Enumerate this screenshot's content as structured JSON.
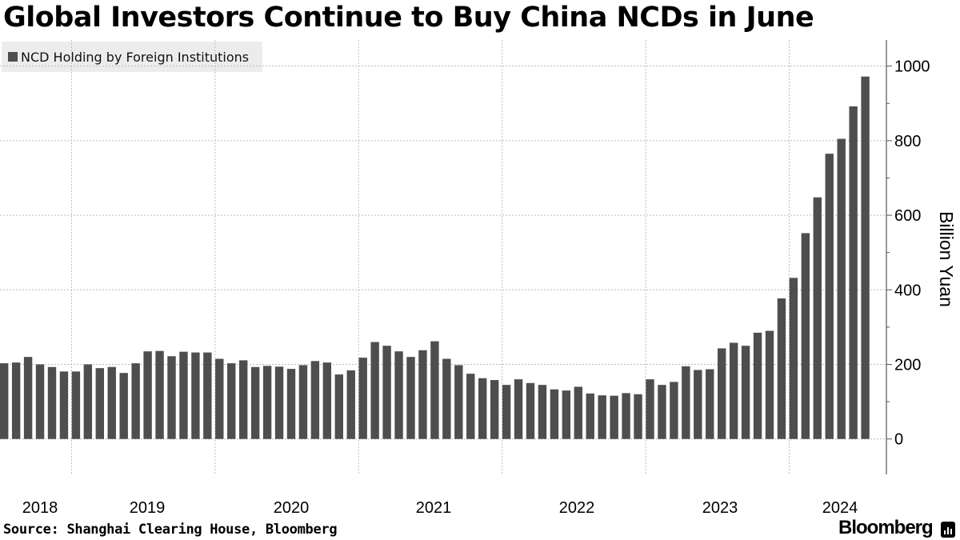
{
  "title": "Global Investors Continue to Buy China NCDs in June",
  "source": "Source: Shanghai Clearing House, Bloomberg",
  "brand": "Bloomberg",
  "colors": {
    "bar": "#4e4e4e",
    "grid": "#bdbdbd",
    "axis": "#555555",
    "legend_bg": "#ececec"
  },
  "chart_data": {
    "type": "bar",
    "title": "Global Investors Continue to Buy China NCDs in June",
    "series": [
      {
        "name": "NCD Holding by Foreign Institutions",
        "values": [
          203,
          205,
          220,
          200,
          193,
          181,
          181,
          200,
          190,
          193,
          177,
          203,
          235,
          236,
          222,
          234,
          232,
          232,
          215,
          203,
          211,
          193,
          196,
          194,
          188,
          198,
          209,
          205,
          173,
          184,
          218,
          260,
          250,
          235,
          220,
          238,
          262,
          215,
          198,
          175,
          163,
          158,
          145,
          160,
          150,
          145,
          133,
          130,
          140,
          122,
          117,
          116,
          123,
          120,
          160,
          145,
          153,
          195,
          185,
          187,
          243,
          258,
          250,
          285,
          290,
          377,
          432,
          552,
          648,
          765,
          805,
          892,
          972
        ]
      }
    ],
    "x_tick_labels": [
      "2018",
      "2019",
      "2020",
      "2021",
      "2022",
      "2023",
      "2024"
    ],
    "ylabel": "Billion Yuan",
    "ylim": [
      -95,
      1070
    ],
    "y_ticks": [
      0,
      200,
      400,
      600,
      800,
      1000
    ],
    "legend": "top-left",
    "grid": true
  }
}
